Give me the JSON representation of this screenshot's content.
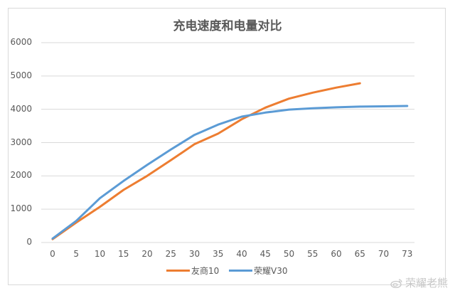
{
  "chart_data": {
    "type": "line",
    "title": "充电速度和电量对比",
    "xlabel": "",
    "ylabel": "",
    "categories": [
      "0",
      "5",
      "10",
      "15",
      "20",
      "25",
      "30",
      "35",
      "40",
      "45",
      "50",
      "55",
      "60",
      "65",
      "70",
      "73"
    ],
    "yticks": [
      "0",
      "1000",
      "2000",
      "3000",
      "4000",
      "5000",
      "6000"
    ],
    "ylim": [
      0,
      6000
    ],
    "grid": true,
    "legend_position": "bottom",
    "series": [
      {
        "name": "友商10",
        "color": "#ED7D31",
        "values": [
          100,
          600,
          1070,
          1580,
          2000,
          2470,
          2950,
          3270,
          3700,
          4050,
          4320,
          4500,
          4650,
          4780,
          null,
          null
        ]
      },
      {
        "name": "荣耀V30",
        "color": "#5B9BD5",
        "values": [
          120,
          650,
          1330,
          1850,
          2330,
          2790,
          3230,
          3540,
          3780,
          3900,
          3990,
          4030,
          4060,
          4080,
          4090,
          4100
        ]
      }
    ]
  },
  "watermark": {
    "icon": "weibo-icon",
    "text": "荣耀老熊"
  }
}
